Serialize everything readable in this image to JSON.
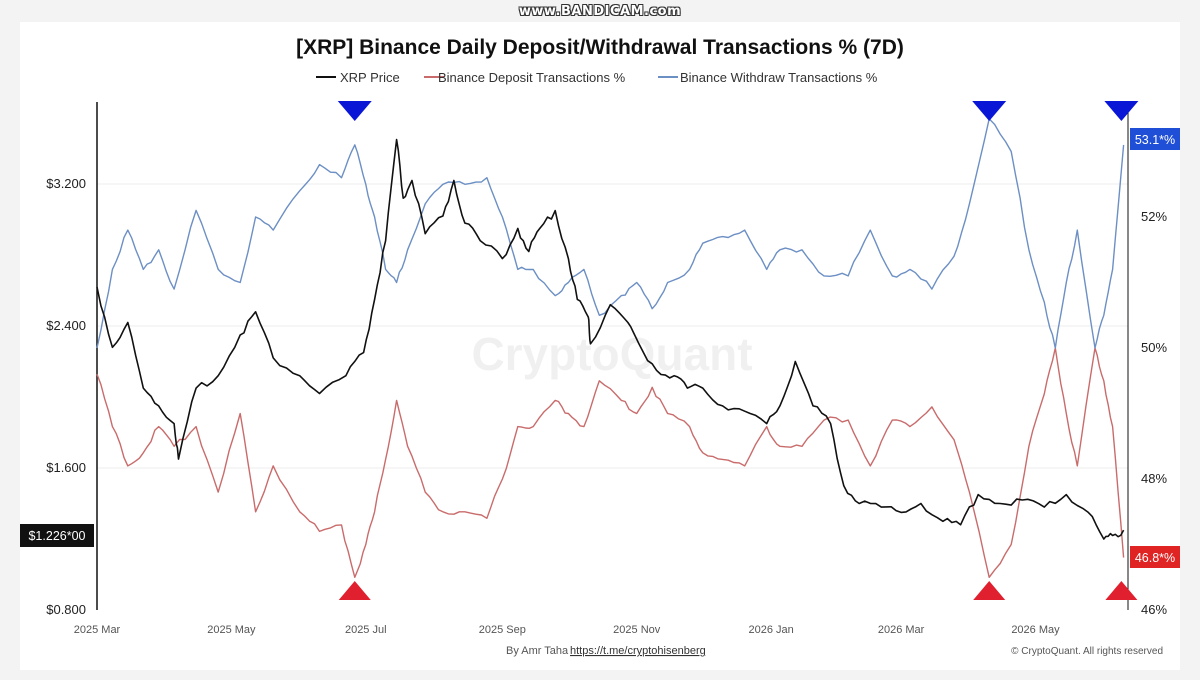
{
  "watermark": "www.BANDICAM.com",
  "chart_data": {
    "type": "line",
    "title": "[XRP] Binance Daily Deposit/Withdrawal Transactions % (7D)",
    "legend": {
      "placement": "top-center",
      "entries": [
        "XRP Price",
        "Binance Deposit Transactions %",
        "Binance Withdraw Transactions %"
      ]
    },
    "x_ticks": [
      "2025 Mar",
      "2025 May",
      "2025 Jul",
      "2025 Sep",
      "2025 Nov",
      "2026 Jan",
      "2026 Mar",
      "2026 May"
    ],
    "y_left": {
      "ticks": [
        "$0.800",
        "$1.600",
        "$2.400",
        "$3.200"
      ],
      "range": [
        0.8,
        3.2
      ]
    },
    "y_right": {
      "ticks": [
        "46%",
        "48%",
        "50%",
        "52%"
      ],
      "range": [
        46,
        52
      ]
    },
    "grid": true,
    "series": [
      {
        "name": "XRP Price",
        "axis": "left",
        "color": "#111111",
        "x": [
          "2025-03-01",
          "2025-03-08",
          "2025-03-15",
          "2025-03-22",
          "2025-03-29",
          "2025-04-05",
          "2025-04-07",
          "2025-04-15",
          "2025-04-25",
          "2025-05-05",
          "2025-05-12",
          "2025-05-20",
          "2025-06-01",
          "2025-06-10",
          "2025-06-22",
          "2025-06-30",
          "2025-07-05",
          "2025-07-10",
          "2025-07-15",
          "2025-07-18",
          "2025-07-22",
          "2025-07-28",
          "2025-08-05",
          "2025-08-10",
          "2025-08-15",
          "2025-08-22",
          "2025-09-01",
          "2025-09-08",
          "2025-09-13",
          "2025-09-18",
          "2025-09-25",
          "2025-10-01",
          "2025-10-05",
          "2025-10-10",
          "2025-10-11",
          "2025-10-20",
          "2025-10-28",
          "2025-11-02",
          "2025-11-10",
          "2025-11-18",
          "2025-11-24",
          "2025-12-01",
          "2025-12-10",
          "2025-12-20",
          "2025-12-30",
          "2026-01-05",
          "2026-01-12",
          "2026-01-20",
          "2026-01-28",
          "2026-02-03",
          "2026-02-10",
          "2026-02-20",
          "2026-03-01",
          "2026-03-10",
          "2026-03-20",
          "2026-03-28",
          "2026-04-05",
          "2026-04-15",
          "2026-04-25",
          "2026-05-05",
          "2026-05-15",
          "2026-05-25",
          "2026-06-01",
          "2026-06-05",
          "2026-06-10"
        ],
        "values": [
          2.62,
          2.28,
          2.42,
          2.05,
          1.95,
          1.85,
          1.65,
          2.05,
          2.12,
          2.35,
          2.48,
          2.22,
          2.12,
          2.02,
          2.12,
          2.25,
          2.55,
          2.88,
          3.45,
          3.12,
          3.22,
          2.92,
          3.02,
          3.22,
          2.98,
          2.88,
          2.78,
          2.95,
          2.82,
          2.95,
          3.05,
          2.78,
          2.55,
          2.45,
          2.3,
          2.52,
          2.42,
          2.3,
          2.15,
          2.12,
          2.05,
          2.05,
          1.95,
          1.92,
          1.85,
          1.95,
          2.2,
          1.95,
          1.85,
          1.5,
          1.4,
          1.38,
          1.35,
          1.4,
          1.3,
          1.28,
          1.45,
          1.4,
          1.42,
          1.38,
          1.45,
          1.35,
          1.2,
          1.22,
          1.25
        ]
      },
      {
        "name": "Binance Deposit Transactions %",
        "axis": "right",
        "color": "#c96b6b",
        "x": [
          "2025-03-01",
          "2025-03-08",
          "2025-03-15",
          "2025-03-22",
          "2025-03-29",
          "2025-04-05",
          "2025-04-15",
          "2025-04-25",
          "2025-05-05",
          "2025-05-12",
          "2025-05-20",
          "2025-06-01",
          "2025-06-10",
          "2025-06-20",
          "2025-06-26",
          "2025-07-01",
          "2025-07-05",
          "2025-07-10",
          "2025-07-15",
          "2025-07-20",
          "2025-07-28",
          "2025-08-05",
          "2025-08-15",
          "2025-08-25",
          "2025-09-01",
          "2025-09-08",
          "2025-09-15",
          "2025-09-25",
          "2025-10-01",
          "2025-10-08",
          "2025-10-15",
          "2025-10-25",
          "2025-11-01",
          "2025-11-08",
          "2025-11-15",
          "2025-11-25",
          "2025-12-01",
          "2025-12-10",
          "2025-12-20",
          "2025-12-30",
          "2026-01-05",
          "2026-01-15",
          "2026-01-25",
          "2026-02-05",
          "2026-02-15",
          "2026-02-25",
          "2026-03-05",
          "2026-03-15",
          "2026-03-25",
          "2026-04-01",
          "2026-04-10",
          "2026-04-20",
          "2026-04-28",
          "2026-05-05",
          "2026-05-10",
          "2026-05-15",
          "2026-05-20",
          "2026-05-28",
          "2026-06-01",
          "2026-06-05",
          "2026-06-10"
        ],
        "values": [
          49.6,
          48.8,
          48.2,
          48.4,
          48.8,
          48.5,
          48.8,
          47.8,
          49.0,
          47.5,
          48.2,
          47.5,
          47.2,
          47.3,
          46.5,
          47.0,
          47.5,
          48.3,
          49.2,
          48.5,
          47.8,
          47.5,
          47.5,
          47.4,
          48.0,
          48.8,
          48.8,
          49.2,
          49.0,
          48.8,
          49.5,
          49.2,
          49.0,
          49.4,
          49.0,
          48.8,
          48.4,
          48.3,
          48.2,
          48.8,
          48.5,
          48.5,
          48.9,
          48.9,
          48.2,
          48.9,
          48.8,
          49.1,
          48.6,
          47.8,
          46.5,
          47.0,
          48.5,
          49.3,
          50.0,
          49.0,
          48.2,
          50.0,
          49.5,
          48.8,
          46.8
        ]
      },
      {
        "name": "Binance Withdraw Transactions %",
        "axis": "right",
        "color": "#6c8fc4",
        "x": [
          "2025-03-01",
          "2025-03-08",
          "2025-03-15",
          "2025-03-22",
          "2025-03-29",
          "2025-04-05",
          "2025-04-15",
          "2025-04-25",
          "2025-05-05",
          "2025-05-12",
          "2025-05-20",
          "2025-06-01",
          "2025-06-10",
          "2025-06-20",
          "2025-06-26",
          "2025-07-01",
          "2025-07-05",
          "2025-07-10",
          "2025-07-15",
          "2025-07-20",
          "2025-07-28",
          "2025-08-05",
          "2025-08-15",
          "2025-08-25",
          "2025-09-01",
          "2025-09-08",
          "2025-09-15",
          "2025-09-25",
          "2025-10-01",
          "2025-10-08",
          "2025-10-15",
          "2025-10-25",
          "2025-11-01",
          "2025-11-08",
          "2025-11-15",
          "2025-11-25",
          "2025-12-01",
          "2025-12-10",
          "2025-12-20",
          "2025-12-30",
          "2026-01-05",
          "2026-01-15",
          "2026-01-25",
          "2026-02-05",
          "2026-02-15",
          "2026-02-25",
          "2026-03-05",
          "2026-03-15",
          "2026-03-25",
          "2026-04-01",
          "2026-04-10",
          "2026-04-20",
          "2026-04-28",
          "2026-05-05",
          "2026-05-10",
          "2026-05-15",
          "2026-05-20",
          "2026-05-28",
          "2026-06-01",
          "2026-06-05",
          "2026-06-10"
        ],
        "values": [
          50.0,
          51.2,
          51.8,
          51.2,
          51.5,
          50.9,
          52.1,
          51.2,
          51.0,
          52.0,
          51.8,
          52.4,
          52.8,
          52.6,
          53.1,
          52.5,
          52.0,
          51.2,
          51.0,
          51.5,
          52.2,
          52.5,
          52.5,
          52.6,
          52.0,
          51.2,
          51.2,
          50.8,
          51.0,
          51.2,
          50.5,
          50.8,
          51.0,
          50.6,
          51.0,
          51.2,
          51.6,
          51.7,
          51.8,
          51.2,
          51.5,
          51.5,
          51.1,
          51.1,
          51.8,
          51.1,
          51.2,
          50.9,
          51.4,
          52.2,
          53.5,
          53.0,
          51.5,
          50.7,
          50.0,
          51.0,
          51.8,
          50.0,
          50.5,
          51.2,
          53.1
        ]
      }
    ],
    "annotations": {
      "price_tag": "$1.226*00",
      "withdraw_tag": "53.1*%",
      "deposit_tag": "46.8*%",
      "withdraw_tag_color": "#1f4fd6",
      "deposit_tag_color": "#e02424",
      "triangles": [
        {
          "direction": "down",
          "color": "#0a16d6",
          "date": "2025-06-26"
        },
        {
          "direction": "up",
          "color": "#e0202e",
          "date": "2025-06-26"
        },
        {
          "direction": "down",
          "color": "#0a16d6",
          "date": "2026-04-10"
        },
        {
          "direction": "up",
          "color": "#e0202e",
          "date": "2026-04-10"
        },
        {
          "direction": "down",
          "color": "#0a16d6",
          "date": "2026-06-09"
        },
        {
          "direction": "up",
          "color": "#e0202e",
          "date": "2026-06-09"
        }
      ]
    },
    "background_watermark": "CryptoQuant",
    "footer_author": "By Amr Taha",
    "footer_link": "https://t.me/cryptohisenberg",
    "copyright": "© CryptoQuant. All rights reserved"
  }
}
